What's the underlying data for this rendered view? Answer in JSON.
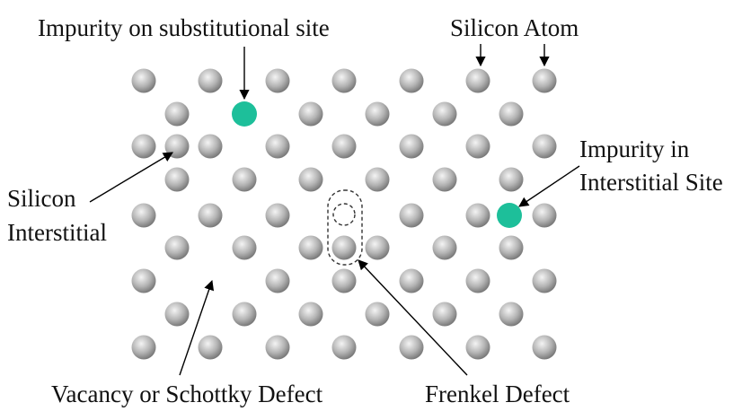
{
  "labels": {
    "impurity_substitutional": "Impurity on substitutional site",
    "silicon_atom": "Silicon Atom",
    "impurity_interstitial_line1": "Impurity in",
    "impurity_interstitial_line2": "Interstitial Site",
    "silicon_interstitial_line1": "Silicon",
    "silicon_interstitial_line2": "Interstitial",
    "vacancy": "Vacancy or Schottky Defect",
    "frenkel": "Frenkel Defect"
  },
  "colors": {
    "impurity": "#1dbf9a",
    "atom_light": "#f4f4f4",
    "atom_mid": "#b4b4b4",
    "atom_dark": "#6f6f6f"
  }
}
